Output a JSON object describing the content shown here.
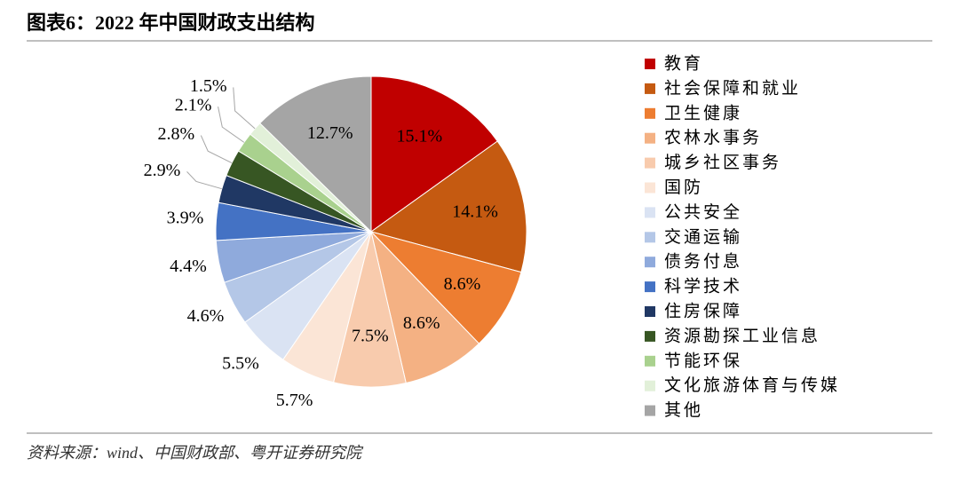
{
  "title": "图表6：2022 年中国财政支出结构",
  "source": "资料来源：wind、中国财政部、粤开证券研究院",
  "chart_data": {
    "type": "pie",
    "categories": [
      "教育",
      "社会保障和就业",
      "卫生健康",
      "农林水事务",
      "城乡社区事务",
      "国防",
      "公共安全",
      "交通运输",
      "债务付息",
      "科学技术",
      "住房保障",
      "资源勘探工业信息",
      "节能环保",
      "文化旅游体育与传媒",
      "其他"
    ],
    "values": [
      15.1,
      14.1,
      8.6,
      8.6,
      7.5,
      5.7,
      5.5,
      4.6,
      4.4,
      3.9,
      2.9,
      2.8,
      2.1,
      1.5,
      12.7
    ],
    "value_labels": [
      "15.1%",
      "14.1%",
      "8.6%",
      "8.6%",
      "7.5%",
      "5.7%",
      "5.5%",
      "4.6%",
      "4.4%",
      "3.9%",
      "2.9%",
      "2.8%",
      "2.1%",
      "1.5%",
      "12.7%"
    ],
    "colors": [
      "#c00000",
      "#c55a11",
      "#ed7d31",
      "#f4b183",
      "#f8cbad",
      "#fbe5d6",
      "#dae3f3",
      "#b4c7e7",
      "#8faadc",
      "#4472c4",
      "#203864",
      "#375623",
      "#a9d18e",
      "#e2f0d9",
      "#a5a5a5"
    ],
    "legend": "right"
  }
}
